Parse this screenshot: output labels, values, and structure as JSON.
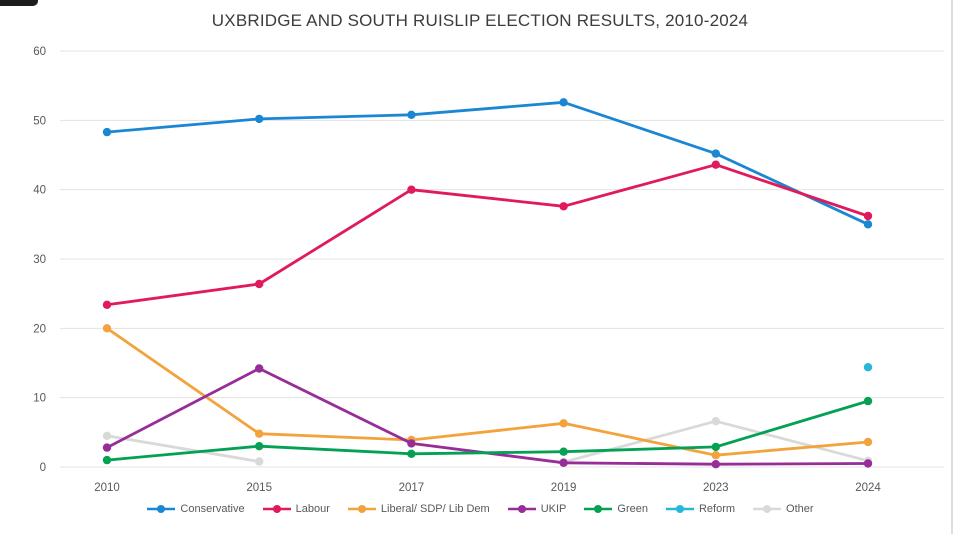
{
  "chart_data": {
    "type": "line",
    "title": "UXBRIDGE AND SOUTH RUISLIP ELECTION RESULTS, 2010-2024",
    "xlabel": "",
    "ylabel": "",
    "categories": [
      "2010",
      "2015",
      "2017",
      "2019",
      "2023",
      "2024"
    ],
    "series": [
      {
        "name": "Conservative",
        "color": "#1b87d3",
        "values": [
          48.3,
          50.2,
          50.8,
          52.6,
          45.2,
          35.0
        ]
      },
      {
        "name": "Labour",
        "color": "#e01a5b",
        "values": [
          23.4,
          26.4,
          40.0,
          37.6,
          43.6,
          36.2
        ]
      },
      {
        "name": "Liberal/ SDP/ Lib Dem",
        "color": "#f2a33c",
        "values": [
          20.0,
          4.8,
          3.9,
          6.3,
          1.7,
          3.6
        ]
      },
      {
        "name": "UKIP",
        "color": "#972d98",
        "values": [
          2.8,
          14.2,
          3.4,
          0.6,
          0.4,
          0.5
        ]
      },
      {
        "name": "Green",
        "color": "#04a155",
        "values": [
          1.0,
          3.0,
          1.9,
          2.2,
          2.9,
          9.5
        ]
      },
      {
        "name": "Reform",
        "color": "#25b8d9",
        "values": [
          null,
          null,
          null,
          null,
          null,
          14.4
        ]
      },
      {
        "name": "Other",
        "color": "#d9d9d9",
        "values": [
          4.5,
          0.8,
          null,
          0.7,
          6.6,
          0.9
        ]
      }
    ],
    "y_axis": {
      "min": 0,
      "max": 60,
      "step": 10,
      "tick_labels": [
        "0",
        "10",
        "20",
        "30",
        "40",
        "50",
        "60"
      ]
    },
    "grid": true,
    "legend_position": "bottom",
    "draw_order_bottom_series": "Other"
  },
  "colors": {
    "gridline": "#e3e3e3",
    "axis_text": "#595959",
    "title_text": "#3c3c3c"
  }
}
